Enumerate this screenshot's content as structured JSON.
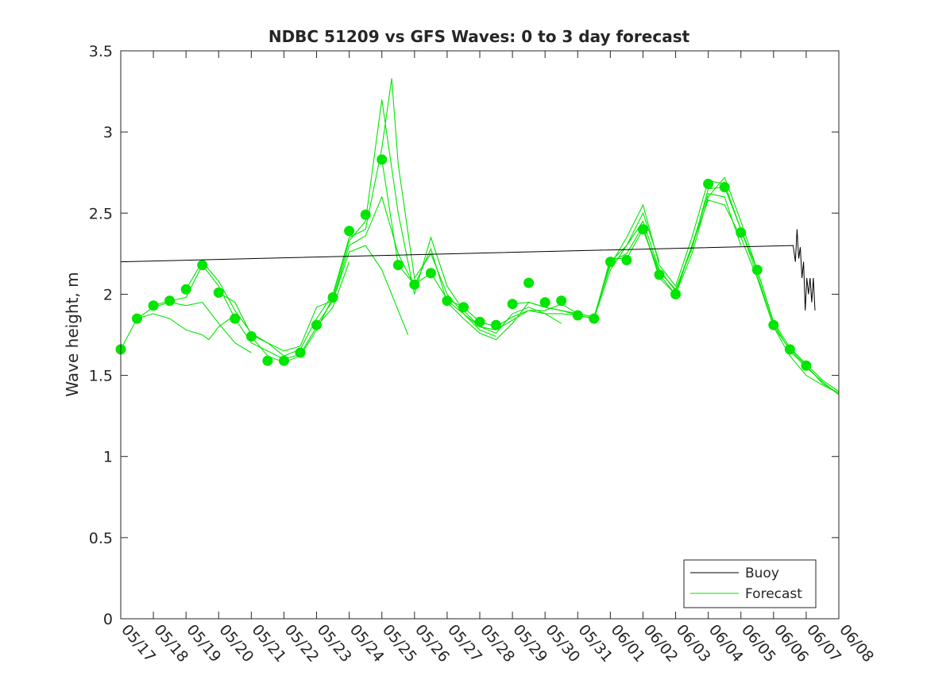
{
  "chart_data": {
    "type": "line",
    "title": "NDBC 51209 vs GFS Waves: 0 to 3 day forecast",
    "xlabel": "",
    "ylabel": "Wave height, m",
    "xlim": [
      "05/17",
      "06/08"
    ],
    "ylim": [
      0,
      3.5
    ],
    "yticks": [
      "0",
      "0.5",
      "1",
      "1.5",
      "2",
      "2.5",
      "3",
      "3.5"
    ],
    "xticks": [
      "05/17",
      "05/18",
      "05/19",
      "05/20",
      "05/21",
      "05/22",
      "05/23",
      "05/24",
      "05/25",
      "05/26",
      "05/27",
      "05/28",
      "05/29",
      "05/30",
      "05/31",
      "06/01",
      "06/02",
      "06/03",
      "06/04",
      "06/05",
      "06/06",
      "06/07",
      "06/08"
    ],
    "grid": false,
    "legend": {
      "placement": "bottom-right",
      "entries": [
        "Buoy",
        "Forecast"
      ]
    },
    "colors": {
      "buoy": "#000000",
      "forecast": "#00e600"
    },
    "x_unit": "days since 05/17 00:00",
    "series": [
      {
        "name": "Buoy",
        "points": [
          [
            0,
            2.2
          ],
          [
            20.6,
            2.3
          ],
          [
            20.67,
            2.2
          ],
          [
            20.72,
            2.4
          ],
          [
            20.77,
            2.22
          ],
          [
            20.82,
            2.29
          ],
          [
            20.87,
            2.1
          ],
          [
            20.92,
            2.2
          ],
          [
            20.97,
            1.9
          ],
          [
            21.02,
            2.1
          ],
          [
            21.07,
            2.0
          ],
          [
            21.12,
            2.1
          ],
          [
            21.17,
            1.95
          ],
          [
            21.22,
            2.1
          ],
          [
            21.27,
            1.9
          ]
        ]
      },
      {
        "name": "Forecast",
        "analysis_points": [
          [
            0,
            1.66
          ],
          [
            0.5,
            1.85
          ],
          [
            1,
            1.93
          ],
          [
            1.5,
            1.96
          ],
          [
            2,
            2.03
          ],
          [
            2.5,
            2.18
          ],
          [
            3,
            2.01
          ],
          [
            3.5,
            1.85
          ],
          [
            4,
            1.74
          ],
          [
            4.5,
            1.59
          ],
          [
            5,
            1.59
          ],
          [
            5.5,
            1.64
          ],
          [
            6,
            1.81
          ],
          [
            6.5,
            1.98
          ],
          [
            7,
            2.39
          ],
          [
            7.5,
            2.49
          ],
          [
            8,
            2.83
          ],
          [
            8.5,
            2.18
          ],
          [
            9,
            2.06
          ],
          [
            9.5,
            2.13
          ],
          [
            10,
            1.96
          ],
          [
            10.5,
            1.92
          ],
          [
            11,
            1.83
          ],
          [
            11.5,
            1.81
          ],
          [
            12,
            1.94
          ],
          [
            12.5,
            2.07
          ],
          [
            13,
            1.95
          ],
          [
            13.5,
            1.96
          ],
          [
            14,
            1.87
          ],
          [
            14.5,
            1.85
          ],
          [
            15,
            2.2
          ],
          [
            15.5,
            2.21
          ],
          [
            16,
            2.4
          ],
          [
            16.5,
            2.12
          ],
          [
            17,
            2.0
          ],
          [
            18,
            2.68
          ],
          [
            18.5,
            2.66
          ],
          [
            19,
            2.38
          ],
          [
            19.5,
            2.15
          ],
          [
            20,
            1.81
          ],
          [
            20.5,
            1.66
          ],
          [
            21,
            1.56
          ]
        ],
        "runs": [
          [
            [
              0,
              1.66
            ],
            [
              0.5,
              1.85
            ],
            [
              1,
              1.88
            ],
            [
              1.5,
              1.85
            ],
            [
              2,
              1.78
            ],
            [
              2.5,
              1.75
            ],
            [
              2.7,
              1.72
            ],
            [
              3,
              1.8
            ],
            [
              3.5,
              1.87
            ]
          ],
          [
            [
              0.5,
              1.85
            ],
            [
              1,
              1.92
            ],
            [
              1.5,
              1.95
            ],
            [
              2,
              1.93
            ],
            [
              2.5,
              1.95
            ],
            [
              3,
              1.82
            ],
            [
              3.5,
              1.7
            ],
            [
              4,
              1.64
            ]
          ],
          [
            [
              1,
              1.93
            ],
            [
              1.5,
              1.96
            ],
            [
              2,
              1.98
            ],
            [
              2.5,
              2.18
            ],
            [
              3,
              2.05
            ],
            [
              3.5,
              1.85
            ],
            [
              4,
              1.7
            ],
            [
              4.5,
              1.65
            ],
            [
              5,
              1.6
            ],
            [
              5.5,
              1.63
            ],
            [
              6,
              1.8
            ],
            [
              6.5,
              1.92
            ],
            [
              7,
              2.2
            ]
          ],
          [
            [
              2,
              2.03
            ],
            [
              2.5,
              2.2
            ],
            [
              3,
              2.08
            ],
            [
              3.5,
              1.9
            ],
            [
              4,
              1.76
            ],
            [
              4.5,
              1.7
            ],
            [
              5,
              1.65
            ],
            [
              5.5,
              1.68
            ],
            [
              6,
              1.92
            ],
            [
              6.5,
              1.96
            ],
            [
              7,
              2.26
            ],
            [
              7.5,
              2.3
            ],
            [
              8,
              2.15
            ],
            [
              8.5,
              1.9
            ],
            [
              8.8,
              1.75
            ]
          ],
          [
            [
              3,
              2.01
            ],
            [
              3.5,
              1.95
            ],
            [
              4,
              1.75
            ],
            [
              4.5,
              1.7
            ],
            [
              5,
              1.62
            ],
            [
              5.5,
              1.66
            ],
            [
              6,
              1.85
            ],
            [
              6.5,
              2.0
            ],
            [
              7,
              2.35
            ],
            [
              7.5,
              2.4
            ],
            [
              8,
              2.9
            ],
            [
              8.3,
              3.33
            ],
            [
              8.5,
              2.8
            ],
            [
              9,
              2.1
            ],
            [
              9.5,
              2.25
            ],
            [
              10,
              2.0
            ],
            [
              10.5,
              1.88
            ],
            [
              11,
              1.78
            ],
            [
              11.5,
              1.74
            ]
          ],
          [
            [
              4,
              1.74
            ],
            [
              4.5,
              1.62
            ],
            [
              5,
              1.58
            ],
            [
              5.5,
              1.62
            ],
            [
              6,
              1.78
            ],
            [
              6.5,
              1.98
            ],
            [
              7,
              2.33
            ],
            [
              7.5,
              2.45
            ],
            [
              8,
              3.2
            ],
            [
              8.5,
              2.5
            ],
            [
              9,
              2.0
            ],
            [
              9.5,
              2.35
            ],
            [
              10,
              2.05
            ],
            [
              10.5,
              1.9
            ],
            [
              11,
              1.8
            ],
            [
              11.5,
              1.76
            ],
            [
              12,
              1.88
            ],
            [
              12.5,
              1.92
            ],
            [
              13,
              1.88
            ],
            [
              13.5,
              1.82
            ]
          ],
          [
            [
              6,
              1.81
            ],
            [
              6.5,
              1.96
            ],
            [
              7,
              2.3
            ],
            [
              7.5,
              2.36
            ],
            [
              8,
              2.6
            ],
            [
              8.5,
              2.25
            ],
            [
              9,
              2.05
            ],
            [
              9.5,
              2.28
            ],
            [
              10,
              1.95
            ],
            [
              10.5,
              1.85
            ],
            [
              11,
              1.76
            ],
            [
              11.5,
              1.72
            ],
            [
              12,
              1.82
            ],
            [
              12.5,
              1.95
            ],
            [
              13,
              1.92
            ],
            [
              13.5,
              1.9
            ],
            [
              14,
              1.87
            ],
            [
              14.5,
              1.85
            ],
            [
              15,
              2.15
            ],
            [
              15.5,
              2.3
            ],
            [
              16,
              2.5
            ],
            [
              16.5,
              2.2
            ]
          ],
          [
            [
              8,
              2.83
            ],
            [
              8.5,
              2.18
            ],
            [
              9,
              2.06
            ],
            [
              9.5,
              2.13
            ],
            [
              10,
              1.97
            ],
            [
              10.5,
              1.92
            ],
            [
              11,
              1.83
            ],
            [
              11.5,
              1.8
            ],
            [
              12,
              1.86
            ],
            [
              12.5,
              1.9
            ],
            [
              13,
              1.88
            ],
            [
              13.5,
              1.88
            ],
            [
              14,
              1.87
            ],
            [
              14.5,
              1.85
            ],
            [
              15,
              2.2
            ],
            [
              15.5,
              2.3
            ],
            [
              16,
              2.45
            ],
            [
              16.5,
              2.15
            ],
            [
              17,
              2.02
            ],
            [
              17.5,
              2.3
            ],
            [
              18,
              2.62
            ],
            [
              18.5,
              2.6
            ],
            [
              19,
              2.3
            ]
          ],
          [
            [
              10,
              1.96
            ],
            [
              10.5,
              1.88
            ],
            [
              11,
              1.8
            ],
            [
              11.5,
              1.78
            ],
            [
              12,
              1.84
            ],
            [
              12.5,
              1.9
            ],
            [
              13,
              1.9
            ],
            [
              13.5,
              1.94
            ],
            [
              14,
              1.88
            ],
            [
              14.5,
              1.86
            ],
            [
              15,
              2.18
            ],
            [
              15.5,
              2.35
            ],
            [
              16,
              2.55
            ],
            [
              16.5,
              2.18
            ],
            [
              17,
              2.05
            ],
            [
              17.5,
              2.35
            ],
            [
              18,
              2.7
            ],
            [
              18.5,
              2.68
            ],
            [
              19,
              2.4
            ],
            [
              19.5,
              2.12
            ],
            [
              20,
              1.8
            ],
            [
              20.5,
              1.62
            ],
            [
              21,
              1.5
            ],
            [
              21.5,
              1.44
            ],
            [
              21.9,
              1.4
            ]
          ],
          [
            [
              12,
              1.94
            ],
            [
              12.5,
              1.95
            ],
            [
              13,
              1.92
            ],
            [
              13.5,
              1.9
            ],
            [
              14,
              1.88
            ],
            [
              14.5,
              1.86
            ],
            [
              15,
              2.2
            ],
            [
              15.5,
              2.25
            ],
            [
              16,
              2.42
            ],
            [
              16.5,
              2.1
            ],
            [
              17,
              2.0
            ],
            [
              17.5,
              2.25
            ],
            [
              18,
              2.6
            ],
            [
              18.5,
              2.72
            ],
            [
              19,
              2.45
            ],
            [
              19.5,
              2.15
            ],
            [
              20,
              1.82
            ],
            [
              20.5,
              1.65
            ],
            [
              21,
              1.55
            ],
            [
              21.5,
              1.46
            ],
            [
              22,
              1.38
            ]
          ],
          [
            [
              14,
              1.87
            ],
            [
              14.5,
              1.85
            ],
            [
              15,
              2.22
            ],
            [
              15.5,
              2.22
            ],
            [
              16,
              2.4
            ],
            [
              16.5,
              2.12
            ],
            [
              17,
              2.0
            ],
            [
              17.5,
              2.3
            ],
            [
              18,
              2.58
            ],
            [
              18.5,
              2.55
            ],
            [
              19,
              2.35
            ],
            [
              19.5,
              2.1
            ],
            [
              20,
              1.8
            ],
            [
              20.5,
              1.66
            ],
            [
              21,
              1.56
            ],
            [
              21.5,
              1.45
            ],
            [
              22,
              1.39
            ]
          ],
          [
            [
              16,
              2.4
            ],
            [
              16.5,
              2.14
            ],
            [
              17,
              2.03
            ],
            [
              17.5,
              2.28
            ],
            [
              18,
              2.65
            ],
            [
              18.5,
              2.66
            ],
            [
              19,
              2.4
            ],
            [
              19.5,
              2.15
            ],
            [
              20,
              1.83
            ],
            [
              20.5,
              1.67
            ],
            [
              21,
              1.57
            ],
            [
              21.5,
              1.47
            ],
            [
              22,
              1.4
            ]
          ]
        ]
      }
    ]
  }
}
